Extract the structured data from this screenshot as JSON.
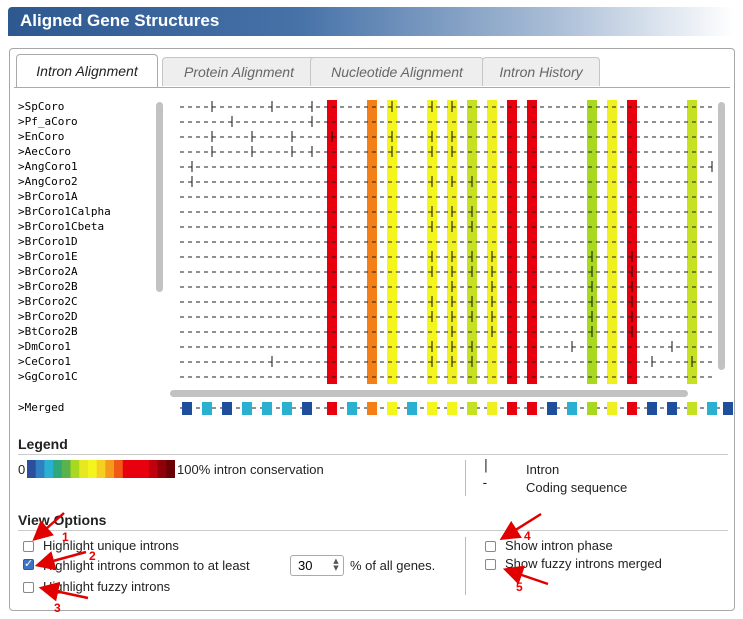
{
  "title": "Aligned Gene Structures",
  "tabs": [
    {
      "label": "Intron Alignment",
      "active": true
    },
    {
      "label": "Protein Alignment",
      "active": false
    },
    {
      "label": "Nucleotide Alignment",
      "active": false
    },
    {
      "label": "Intron History",
      "active": false
    }
  ],
  "genes": [
    ">SpCoro",
    ">Pf_aCoro",
    ">EnCoro",
    ">AecCoro",
    ">AngCoro1",
    ">AngCoro2",
    ">BrCoro1A",
    ">BrCoro1Calpha",
    ">BrCoro1Cbeta",
    ">BrCoro1D",
    ">BrCoro1E",
    ">BrCoro2A",
    ">BrCoro2B",
    ">BrCoro2C",
    ">BrCoro2D",
    ">BtCoro2B",
    ">DmCoro1",
    ">CeCoro1",
    ">GgCoro1C"
  ],
  "merged_label": ">Merged",
  "columns": [
    {
      "color": "#e8000e"
    },
    {
      "color": "#f57f17"
    },
    {
      "color": "#f5f51e"
    },
    {
      "color": "#f5f51e"
    },
    {
      "color": "#f0f020"
    },
    {
      "color": "#c6e022"
    },
    {
      "color": "#f0f020"
    },
    {
      "color": "#e8000e"
    },
    {
      "color": "#e8000e"
    },
    {
      "color": "#a8d820"
    },
    {
      "color": "#f0f020"
    },
    {
      "color": "#e8000e"
    },
    {
      "color": "#c6e022"
    }
  ],
  "legend": {
    "heading": "Legend",
    "left_label": "0",
    "right_label": "100% intron conservation",
    "scale_colors": [
      "#2b4f9c",
      "#2f7fc3",
      "#2ab0d0",
      "#2ea87a",
      "#5ab34a",
      "#a8d820",
      "#e6e820",
      "#f5f51e",
      "#f5d020",
      "#f59a1a",
      "#f05a15",
      "#e8000e",
      "#e8000e",
      "#e8000e",
      "#c0000c",
      "#900008",
      "#6a0006"
    ],
    "intron_key": "Intron",
    "coding_key": "Coding sequence",
    "intron_symbol": "|",
    "coding_symbol": "-"
  },
  "view_options": {
    "heading": "View Options",
    "highlight_unique": {
      "label": "Highlight unique introns",
      "checked": false
    },
    "highlight_common": {
      "label": "Highlight introns common to at least",
      "checked": true,
      "value": "30",
      "suffix": "% of all genes."
    },
    "highlight_fuzzy": {
      "label": "Highlight fuzzy introns",
      "checked": false
    },
    "show_phase": {
      "label": "Show intron phase",
      "checked": false
    },
    "show_fuzzy_merged": {
      "label": "Show fuzzy introns merged",
      "checked": false
    }
  },
  "annotations": [
    "1",
    "2",
    "3",
    "4",
    "5"
  ],
  "colors": {
    "annotation": "#e00000",
    "title_bg": "#2d5890"
  }
}
